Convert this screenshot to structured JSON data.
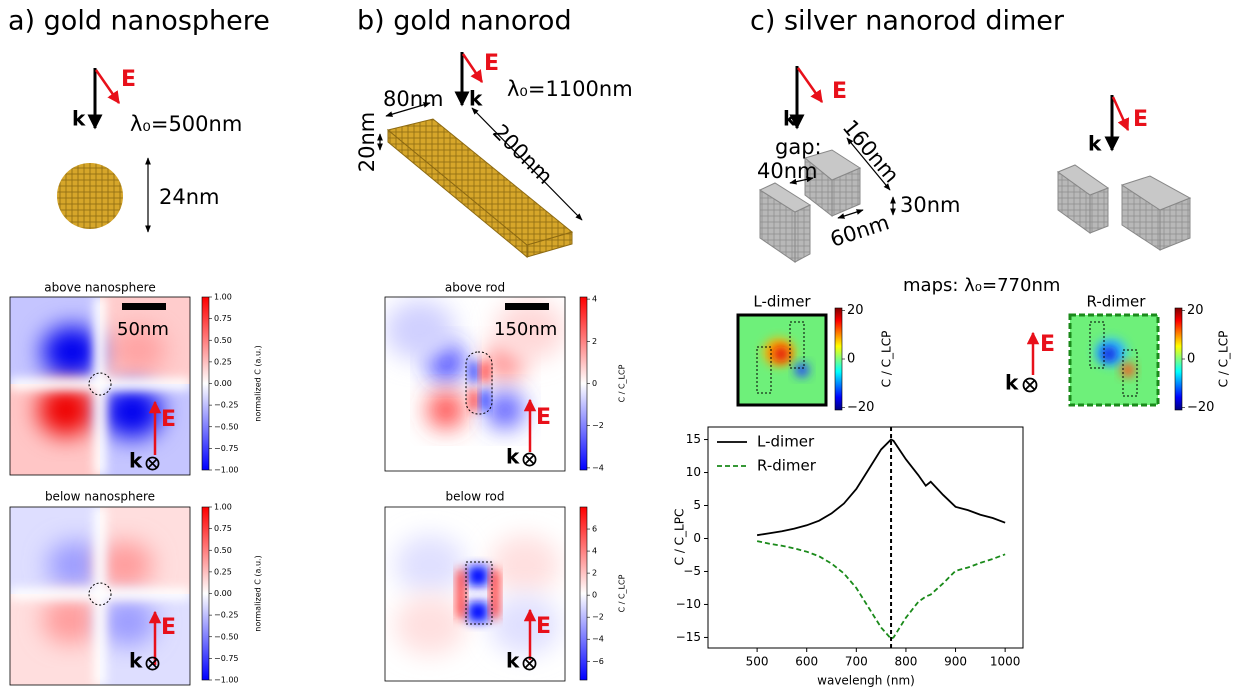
{
  "panel_a": {
    "title": "a) gold nanosphere",
    "k": "k",
    "E": "E",
    "wavelength": "λ₀=500nm",
    "size": "24nm",
    "maps": [
      {
        "title": "above nanosphere",
        "scale": "50nm",
        "k": "k",
        "E": "E",
        "colorbar": {
          "label": "normalized C (a.u.)",
          "lim": [
            -1,
            1
          ],
          "ticks": [
            {
              "value": 1,
              "label": "1.00"
            },
            {
              "value": 0.75,
              "label": "0.75"
            },
            {
              "value": 0.5,
              "label": "0.50"
            },
            {
              "value": 0.25,
              "label": "0.25"
            },
            {
              "value": 0,
              "label": "0.00"
            },
            {
              "value": -0.25,
              "label": "−0.25"
            },
            {
              "value": -0.5,
              "label": "−0.50"
            },
            {
              "value": -0.75,
              "label": "−0.75"
            },
            {
              "value": -1,
              "label": "−1.00"
            }
          ]
        }
      },
      {
        "title": "below nanosphere",
        "k": "k",
        "E": "E",
        "colorbar": {
          "label": "normalized C (a.u.)",
          "lim": [
            -1,
            1
          ],
          "ticks": [
            {
              "value": 1,
              "label": "1.00"
            },
            {
              "value": 0.75,
              "label": "0.75"
            },
            {
              "value": 0.5,
              "label": "0.50"
            },
            {
              "value": 0.25,
              "label": "0.25"
            },
            {
              "value": 0,
              "label": "0.00"
            },
            {
              "value": -0.25,
              "label": "−0.25"
            },
            {
              "value": -0.5,
              "label": "−0.50"
            },
            {
              "value": -0.75,
              "label": "−0.75"
            },
            {
              "value": -1,
              "label": "−1.00"
            }
          ]
        }
      }
    ]
  },
  "panel_b": {
    "title": "b) gold nanorod",
    "k": "k",
    "E": "E",
    "wavelength": "λ₀=1100nm",
    "width": "80nm",
    "height": "20nm",
    "length": "200nm",
    "maps": [
      {
        "title": "above rod",
        "scale": "150nm",
        "k": "k",
        "E": "E",
        "colorbar": {
          "label": "C / C_LCP",
          "lim": [
            -4.1,
            4.1
          ],
          "ticks": [
            4,
            2,
            0,
            {
              "value": -2,
              "label": "−2"
            },
            {
              "value": -4,
              "label": "−4"
            }
          ]
        }
      },
      {
        "title": "below rod",
        "k": "k",
        "E": "E",
        "colorbar": {
          "label": "C / C_LCP",
          "lim": [
            -7.7,
            8.0
          ],
          "ticks": [
            6,
            4,
            2,
            0,
            {
              "value": -2,
              "label": "−2"
            },
            {
              "value": -4,
              "label": "−4"
            },
            {
              "value": -6,
              "label": "−6"
            }
          ]
        }
      }
    ]
  },
  "panel_c": {
    "title": "c) silver nanorod dimer",
    "k_left": "k",
    "E_left": "E",
    "k_right": "k",
    "E_right": "E",
    "gap_label": "gap:",
    "gap": "40nm",
    "length": "160nm",
    "height": "30nm",
    "width": "60nm",
    "maps_label": "maps: λ₀=770nm",
    "maps": [
      {
        "title": "L-dimer",
        "colorbar": {
          "label": "C / C_LCP",
          "lim": [
            -21,
            21
          ],
          "ticks": [
            20,
            0,
            {
              "value": -20,
              "label": "−20"
            }
          ]
        }
      },
      {
        "title": "R-dimer",
        "k": "k",
        "E": "E",
        "colorbar": {
          "label": "C / C_LCP",
          "lim": [
            -21,
            21
          ],
          "ticks": [
            20,
            0,
            {
              "value": -20,
              "label": "−20"
            }
          ]
        }
      }
    ]
  },
  "chart_data": {
    "type": "line",
    "xlabel": "wavelengh (nm)",
    "ylabel": "C / C_LPC",
    "legend": "upper left",
    "vline": 770,
    "x": [
      500,
      525,
      550,
      575,
      600,
      625,
      650,
      675,
      700,
      725,
      750,
      770,
      775,
      800,
      825,
      840,
      850,
      875,
      900,
      925,
      950,
      975,
      1000
    ],
    "series": [
      {
        "name": "L-dimer",
        "color": "#000000",
        "linestyle": "solid",
        "values": [
          0.5,
          0.8,
          1.1,
          1.5,
          2.0,
          2.7,
          3.8,
          5.3,
          7.5,
          10.5,
          13.5,
          15.0,
          14.8,
          12.0,
          9.6,
          8.0,
          8.6,
          6.6,
          4.8,
          4.3,
          3.6,
          3.1,
          2.4
        ]
      },
      {
        "name": "R-dimer",
        "color": "#1a8a1a",
        "linestyle": "dashed",
        "values": [
          -0.4,
          -0.8,
          -1.1,
          -1.5,
          -2.0,
          -2.7,
          -3.8,
          -5.3,
          -7.5,
          -10.5,
          -13.5,
          -15.2,
          -15.0,
          -12.0,
          -9.6,
          -8.8,
          -8.5,
          -6.8,
          -4.9,
          -4.4,
          -3.7,
          -3.1,
          -2.4
        ]
      }
    ],
    "xlim": [
      401,
      1036
    ],
    "xticks": [
      500,
      600,
      700,
      800,
      900,
      1000
    ],
    "ylim": [
      -16.6,
      16.9
    ],
    "yticks": [
      {
        "value": -15,
        "label": "−15"
      },
      {
        "value": -10,
        "label": "−10"
      },
      {
        "value": -5,
        "label": "−5"
      },
      0,
      5,
      10,
      15
    ]
  }
}
